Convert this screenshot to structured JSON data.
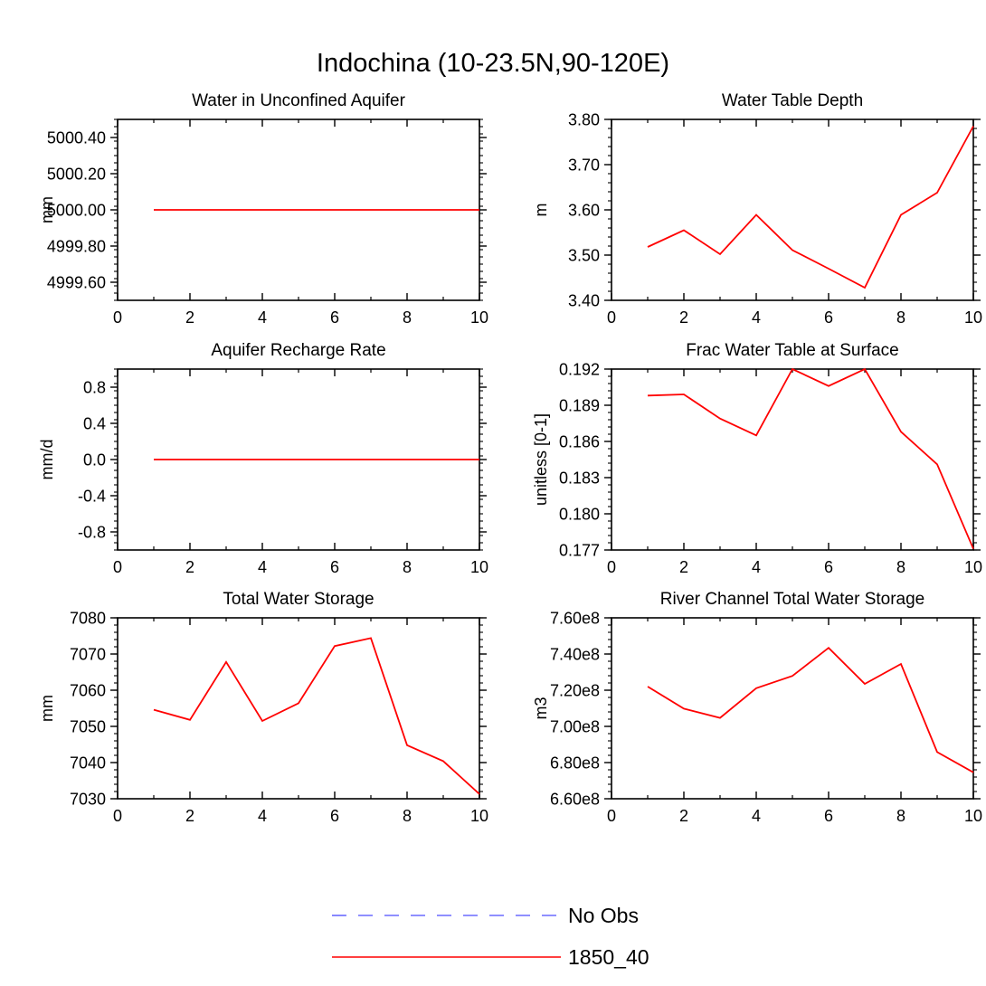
{
  "figure": {
    "title": "Indochina (10-23.5N,90-120E)"
  },
  "legend": {
    "placement": "bottom-center",
    "entries": [
      {
        "label": "No Obs",
        "color": "#6b6bff",
        "style": "dashed"
      },
      {
        "label": "1850_40",
        "color": "#ff0000",
        "style": "solid"
      }
    ]
  },
  "chart_data": [
    {
      "type": "line",
      "title": "Water in Unconfined Aquifer",
      "xlabel": "",
      "ylabel": "mm",
      "xlim": [
        0,
        10
      ],
      "ylim": [
        4999.5,
        5000.5
      ],
      "xticks": [
        0,
        2,
        4,
        6,
        8,
        10
      ],
      "xtick_labels": [
        "0",
        "2",
        "4",
        "6",
        "8",
        "10"
      ],
      "yticks": [
        4999.6,
        4999.8,
        5000.0,
        5000.2,
        5000.4
      ],
      "ytick_labels": [
        "4999.60",
        "4999.80",
        "5000.00",
        "5000.20",
        "5000.40"
      ],
      "series": [
        {
          "name": "1850_40",
          "color": "#ff0000",
          "x": [
            1,
            2,
            3,
            4,
            5,
            6,
            7,
            8,
            9,
            10
          ],
          "values": [
            5000,
            5000,
            5000,
            5000,
            5000,
            5000,
            5000,
            5000,
            5000,
            5000
          ]
        }
      ]
    },
    {
      "type": "line",
      "title": "Water Table Depth",
      "xlabel": "",
      "ylabel": "m",
      "xlim": [
        0,
        10
      ],
      "ylim": [
        3.4,
        3.8
      ],
      "xticks": [
        0,
        2,
        4,
        6,
        8,
        10
      ],
      "xtick_labels": [
        "0",
        "2",
        "4",
        "6",
        "8",
        "10"
      ],
      "yticks": [
        3.4,
        3.5,
        3.6,
        3.7,
        3.8
      ],
      "ytick_labels": [
        "3.40",
        "3.50",
        "3.60",
        "3.70",
        "3.80"
      ],
      "series": [
        {
          "name": "1850_40",
          "color": "#ff0000",
          "x": [
            1,
            2,
            3,
            4,
            5,
            6,
            7,
            8,
            9,
            10
          ],
          "values": [
            3.518,
            3.555,
            3.502,
            3.589,
            3.511,
            3.47,
            3.428,
            3.589,
            3.638,
            3.785
          ]
        }
      ]
    },
    {
      "type": "line",
      "title": "Aquifer Recharge Rate",
      "xlabel": "",
      "ylabel": "mm/d",
      "xlim": [
        0,
        10
      ],
      "ylim": [
        -1.0,
        1.0
      ],
      "xticks": [
        0,
        2,
        4,
        6,
        8,
        10
      ],
      "xtick_labels": [
        "0",
        "2",
        "4",
        "6",
        "8",
        "10"
      ],
      "yticks": [
        -0.8,
        -0.4,
        0.0,
        0.4,
        0.8
      ],
      "ytick_labels": [
        "-0.8",
        "-0.4",
        "0.0",
        "0.4",
        "0.8"
      ],
      "series": [
        {
          "name": "1850_40",
          "color": "#ff0000",
          "x": [
            1,
            2,
            3,
            4,
            5,
            6,
            7,
            8,
            9,
            10
          ],
          "values": [
            0,
            0,
            0,
            0,
            0,
            0,
            0,
            0,
            0,
            0
          ]
        }
      ]
    },
    {
      "type": "line",
      "title": "Frac Water Table at Surface",
      "xlabel": "",
      "ylabel": "unitless [0-1]",
      "xlim": [
        0,
        10
      ],
      "ylim": [
        0.177,
        0.192
      ],
      "xticks": [
        0,
        2,
        4,
        6,
        8,
        10
      ],
      "xtick_labels": [
        "0",
        "2",
        "4",
        "6",
        "8",
        "10"
      ],
      "yticks": [
        0.177,
        0.18,
        0.183,
        0.186,
        0.189,
        0.192
      ],
      "ytick_labels": [
        "0.177",
        "0.180",
        "0.183",
        "0.186",
        "0.189",
        "0.192"
      ],
      "series": [
        {
          "name": "1850_40",
          "color": "#ff0000",
          "x": [
            1,
            2,
            3,
            4,
            5,
            6,
            7,
            8,
            9,
            10
          ],
          "values": [
            0.1898,
            0.1899,
            0.1879,
            0.1865,
            0.192,
            0.1906,
            0.192,
            0.1868,
            0.1841,
            0.1771
          ]
        }
      ]
    },
    {
      "type": "line",
      "title": "Total Water Storage",
      "xlabel": "",
      "ylabel": "mm",
      "xlim": [
        0,
        10
      ],
      "ylim": [
        7030,
        7080
      ],
      "xticks": [
        0,
        2,
        4,
        6,
        8,
        10
      ],
      "xtick_labels": [
        "0",
        "2",
        "4",
        "6",
        "8",
        "10"
      ],
      "yticks": [
        7030,
        7040,
        7050,
        7060,
        7070,
        7080
      ],
      "ytick_labels": [
        "7030",
        "7040",
        "7050",
        "7060",
        "7070",
        "7080"
      ],
      "series": [
        {
          "name": "1850_40",
          "color": "#ff0000",
          "x": [
            1,
            2,
            3,
            4,
            5,
            6,
            7,
            8,
            9,
            10
          ],
          "values": [
            7054.6,
            7051.8,
            7067.8,
            7051.5,
            7056.4,
            7072.2,
            7074.4,
            7044.8,
            7040.4,
            7031.3
          ]
        }
      ]
    },
    {
      "type": "line",
      "title": "River Channel Total Water Storage",
      "xlabel": "",
      "ylabel": "m3",
      "xlim": [
        0,
        10
      ],
      "ylim": [
        660000000,
        760000000
      ],
      "xticks": [
        0,
        2,
        4,
        6,
        8,
        10
      ],
      "xtick_labels": [
        "0",
        "2",
        "4",
        "6",
        "8",
        "10"
      ],
      "yticks": [
        660000000,
        680000000,
        700000000,
        720000000,
        740000000,
        760000000
      ],
      "ytick_labels": [
        "6.60e8",
        "6.80e8",
        "7.00e8",
        "7.20e8",
        "7.40e8",
        "7.60e8"
      ],
      "series": [
        {
          "name": "1850_40",
          "color": "#ff0000",
          "x": [
            1,
            2,
            3,
            4,
            5,
            6,
            7,
            8,
            9,
            10
          ],
          "values": [
            722000000,
            709800000,
            704700000,
            721100000,
            727900000,
            743400000,
            723500000,
            734500000,
            685800000,
            674600000
          ]
        }
      ]
    }
  ]
}
